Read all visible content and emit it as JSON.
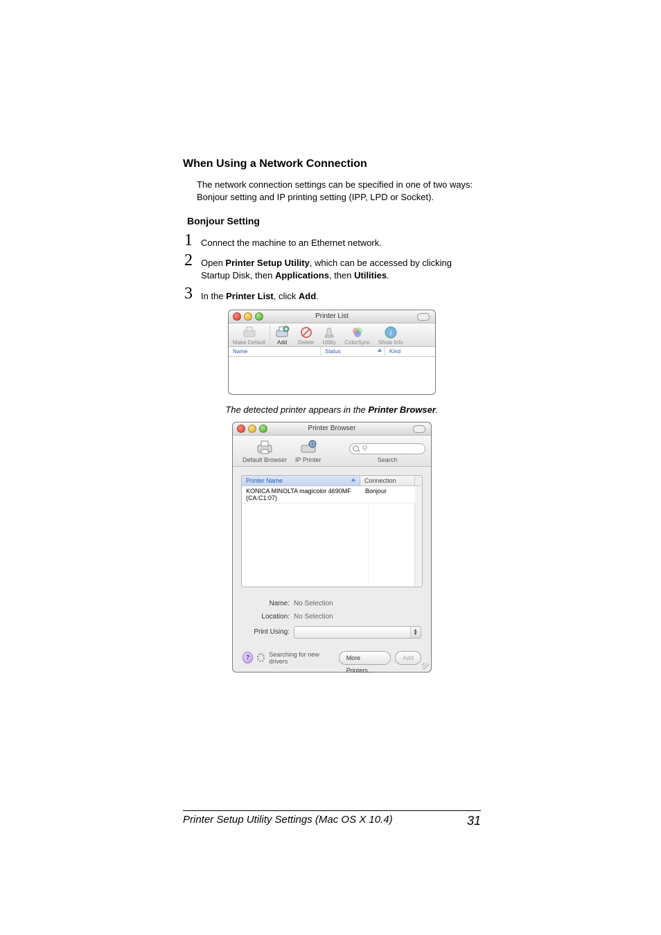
{
  "section_heading": "When Using a Network Connection",
  "intro_text": "The network connection settings can be specified in one of two ways: Bonjour setting and IP printing setting (IPP, LPD or Socket).",
  "subsection_heading": "Bonjour Setting",
  "steps": [
    {
      "num": "1",
      "html": "Connect the machine to an Ethernet network."
    },
    {
      "num": "2",
      "html": "Open <b>Printer Setup Utility</b>, which can be accessed by clicking Startup Disk, then <b>Applications</b>, then <b>Utilities</b>."
    },
    {
      "num": "3",
      "html": "In the <b>Printer List</b>, click <b>Add</b>."
    }
  ],
  "caption_html": "The detected printer appears in the <b>Printer Browser</b>.",
  "screenshot1": {
    "window_title": "Printer List",
    "toolbar": [
      {
        "label": "Make Default",
        "enabled": false,
        "icon": "printer-default"
      },
      {
        "label": "Add",
        "enabled": true,
        "icon": "printer-add"
      },
      {
        "label": "Delete",
        "enabled": false,
        "icon": "no"
      },
      {
        "label": "Utility",
        "enabled": false,
        "icon": "tool"
      },
      {
        "label": "ColorSync",
        "enabled": false,
        "icon": "colorsync"
      },
      {
        "label": "Show Info",
        "enabled": false,
        "icon": "info"
      }
    ],
    "columns": [
      "Name",
      "Status",
      "Kind"
    ]
  },
  "screenshot2": {
    "window_title": "Printer Browser",
    "tabs": [
      {
        "label": "Default Browser",
        "icon": "printer-out"
      },
      {
        "label": "IP Printer",
        "icon": "printer-globe"
      }
    ],
    "search_label": "Search",
    "search_placeholder": "Q-",
    "list_columns": [
      "Printer Name",
      "Connection"
    ],
    "rows": [
      {
        "name": "KONICA MINOLTA magicolor 4690MF (CA:C1:07)",
        "connection": "Bonjour"
      }
    ],
    "fields": {
      "name_label": "Name:",
      "name_value": "No Selection",
      "location_label": "Location:",
      "location_value": "No Selection",
      "printusing_label": "Print Using:"
    },
    "status_text": "Searching for new drivers",
    "more_printers_btn": "More Printers...",
    "add_btn": "Add"
  },
  "footer": {
    "text": "Printer Setup Utility Settings (Mac OS X 10.4)",
    "page": "31"
  },
  "colors": {
    "link_blue": "#2a5db0",
    "selection_blue": "#3a6fd8"
  }
}
